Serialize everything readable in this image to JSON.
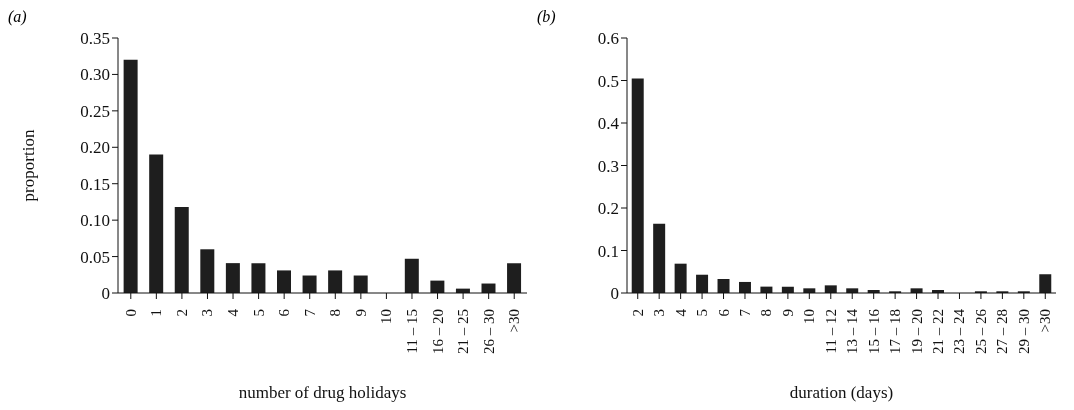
{
  "chart_data": [
    {
      "type": "bar",
      "title": "(a)",
      "xlabel": "number of drug holidays",
      "ylabel": "proportion",
      "categories": [
        "0",
        "1",
        "2",
        "3",
        "4",
        "5",
        "6",
        "7",
        "8",
        "9",
        "10",
        "11 – 15",
        "16 – 20",
        "21 – 25",
        "26 – 30",
        ">30"
      ],
      "values": [
        0.32,
        0.19,
        0.118,
        0.06,
        0.041,
        0.041,
        0.031,
        0.024,
        0.031,
        0.024,
        0,
        0.047,
        0.017,
        0.006,
        0.013,
        0.041
      ],
      "color": "#1e1e1e",
      "ylim": [
        0,
        0.35
      ],
      "yticks": [
        0,
        {
          "value": 0.05,
          "label": "0.05"
        },
        {
          "value": 0.1,
          "label": "0.10"
        },
        {
          "value": 0.15,
          "label": "0.15"
        },
        {
          "value": 0.2,
          "label": "0.20"
        },
        {
          "value": 0.25,
          "label": "0.25"
        },
        {
          "value": 0.3,
          "label": "0.30"
        },
        0.35
      ]
    },
    {
      "type": "bar",
      "title": "(b)",
      "xlabel": "duration (days)",
      "categories": [
        "2",
        "3",
        "4",
        "5",
        "6",
        "7",
        "8",
        "9",
        "10",
        "11 – 12",
        "13 – 14",
        "15 – 16",
        "17 – 18",
        "19 – 20",
        "21 – 22",
        "23 – 24",
        "25 – 26",
        "27 – 28",
        "29 – 30",
        ">30"
      ],
      "values": [
        0.505,
        0.163,
        0.069,
        0.043,
        0.033,
        0.026,
        0.015,
        0.015,
        0.011,
        0.018,
        0.011,
        0.007,
        0.004,
        0.011,
        0.007,
        0,
        0.004,
        0.004,
        0.004,
        0.044
      ],
      "color": "#1e1e1e",
      "ylim": [
        0,
        0.6
      ],
      "yticks": [
        0,
        0.1,
        0.2,
        0.3,
        0.4,
        0.5,
        0.6
      ]
    }
  ]
}
